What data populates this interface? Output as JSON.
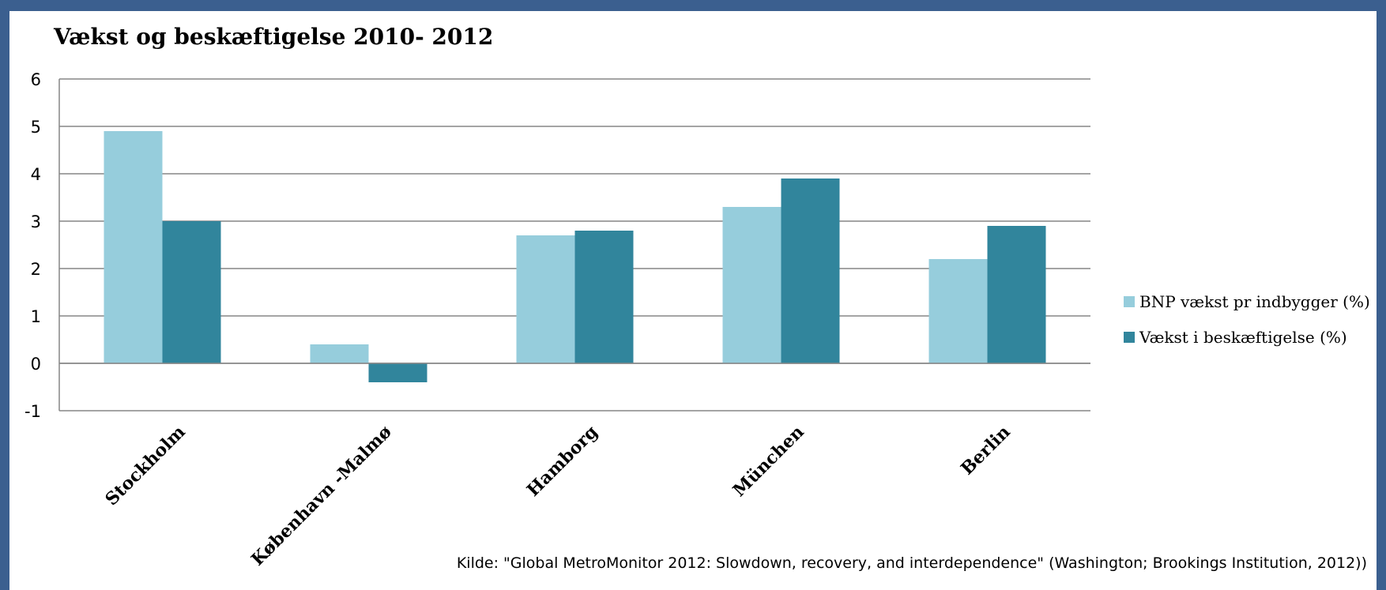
{
  "chart_data": {
    "type": "bar",
    "title": "Vækst og beskæftigelse 2010- 2012",
    "categories": [
      "Stockholm",
      "København -Malmø",
      "Hamborg",
      "München",
      "Berlin"
    ],
    "series": [
      {
        "name": "BNP vækst pr indbygger (%)",
        "values": [
          4.9,
          0.4,
          2.7,
          3.3,
          2.2
        ],
        "color": "#96cddc"
      },
      {
        "name": "Vækst i beskæftigelse (%)",
        "values": [
          3.0,
          -0.4,
          2.8,
          3.9,
          2.9
        ],
        "color": "#31859c"
      }
    ],
    "ylim": [
      -1,
      6
    ],
    "yticks": [
      "6",
      "5",
      "4",
      "3",
      "2",
      "1",
      "0",
      "-1"
    ],
    "grid": true,
    "legend": "right",
    "xlabel": "",
    "ylabel": ""
  },
  "source": "Kilde: \"Global MetroMonitor 2012: Slowdown, recovery, and interdependence\" (Washington; Brookings Institution, 2012))",
  "colors": {
    "frame": "#3b5f8f",
    "grid": "#868686"
  }
}
